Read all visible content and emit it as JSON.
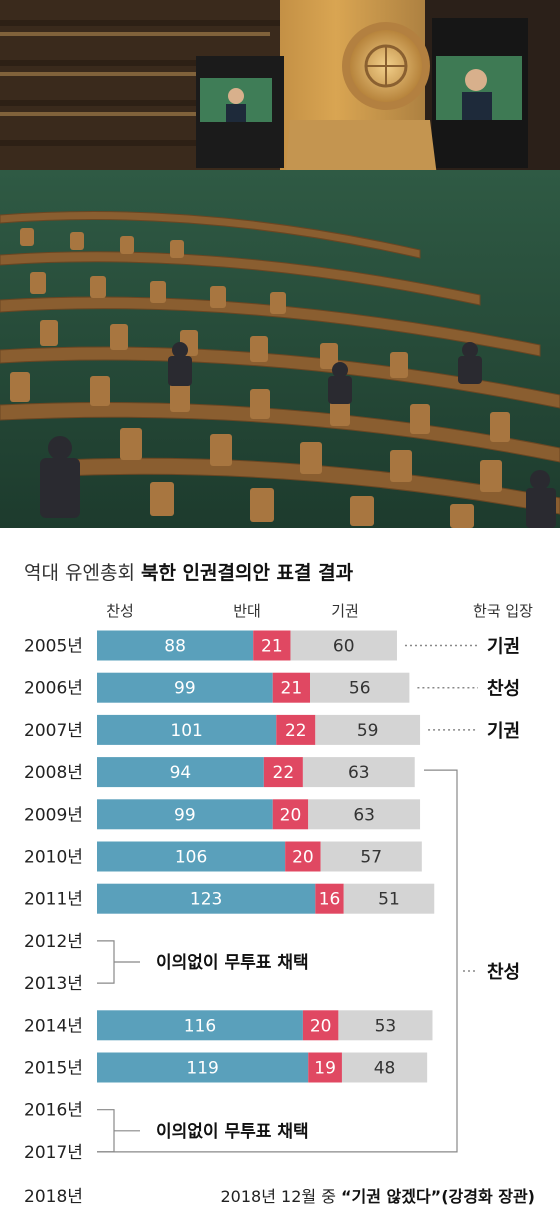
{
  "photo": {
    "description_icon": "un-general-assembly-hall-photo"
  },
  "chart_data": {
    "type": "bar",
    "stacked": true,
    "orientation": "horizontal",
    "title_part1": "역대 유엔총회 ",
    "title_part2": "북한 인권결의안 표결 결과",
    "headers": {
      "yes": "찬성",
      "no": "반대",
      "abstain": "기권",
      "korea": "한국 입장"
    },
    "colors": {
      "yes": "#5aa0bb",
      "no": "#e04862",
      "abstain": "#d4d4d4",
      "bracket": "#888888"
    },
    "rows": [
      {
        "year": "2005년",
        "yes": 88,
        "no": 21,
        "abstain": 60
      },
      {
        "year": "2006년",
        "yes": 99,
        "no": 21,
        "abstain": 56
      },
      {
        "year": "2007년",
        "yes": 101,
        "no": 22,
        "abstain": 59
      },
      {
        "year": "2008년",
        "yes": 94,
        "no": 22,
        "abstain": 63
      },
      {
        "year": "2009년",
        "yes": 99,
        "no": 20,
        "abstain": 63
      },
      {
        "year": "2010년",
        "yes": 106,
        "no": 20,
        "abstain": 57
      },
      {
        "year": "2011년",
        "yes": 123,
        "no": 16,
        "abstain": 51
      },
      {
        "year": "2012년",
        "consensus": true
      },
      {
        "year": "2013년",
        "consensus": true
      },
      {
        "year": "2014년",
        "yes": 116,
        "no": 20,
        "abstain": 53
      },
      {
        "year": "2015년",
        "yes": 119,
        "no": 19,
        "abstain": 48
      },
      {
        "year": "2016년",
        "consensus": true
      },
      {
        "year": "2017년",
        "consensus": true
      },
      {
        "year": "2018년",
        "footer": true
      }
    ],
    "korea_positions": [
      {
        "label": "기권",
        "years": [
          "2005년"
        ]
      },
      {
        "label": "찬성",
        "years": [
          "2006년"
        ]
      },
      {
        "label": "기권",
        "years": [
          "2007년"
        ]
      },
      {
        "label": "찬성",
        "years": [
          "2008년",
          "2017년"
        ]
      }
    ],
    "consensus_note": "이의없이 무투표 채택",
    "footer_text": "2018년 12월 중 ",
    "footer_quote": "“기권 않겠다”(강경화 장관)"
  }
}
